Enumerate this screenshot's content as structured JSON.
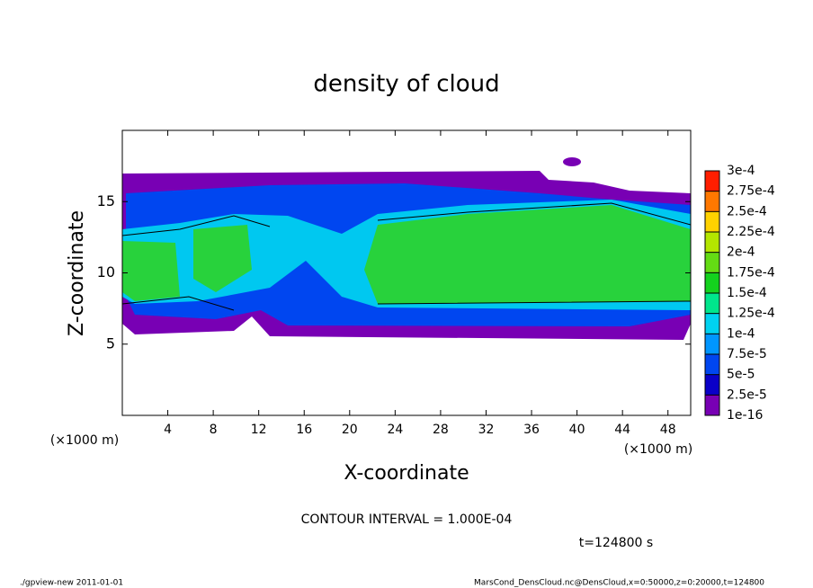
{
  "chart_data": {
    "type": "contour",
    "title": "density of cloud",
    "x_label": "X-coordinate",
    "y_label": "Z-coordinate",
    "axis_unit": "(×1000 m)",
    "xlim": [
      0,
      50
    ],
    "xticks": [
      4,
      8,
      12,
      16,
      20,
      24,
      28,
      32,
      36,
      40,
      44,
      48
    ],
    "ylim": [
      0,
      20
    ],
    "yticks": [
      5,
      10,
      15
    ],
    "colorbar_ticks": [
      1e-16,
      {
        "value": 2.5e-05,
        "label": "2.5e-5"
      },
      {
        "value": 5e-05,
        "label": "5e-5"
      },
      {
        "value": 7.5e-05,
        "label": "7.5e-5"
      },
      {
        "value": 0.0001,
        "label": "1e-4"
      },
      {
        "value": 0.000125,
        "label": "1.25e-4"
      },
      {
        "value": 0.00015,
        "label": "1.5e-4"
      },
      {
        "value": 0.000175,
        "label": "1.75e-4"
      },
      {
        "value": 0.0002,
        "label": "2e-4"
      },
      {
        "value": 0.000225,
        "label": "2.25e-4"
      },
      {
        "value": 0.00025,
        "label": "2.5e-4"
      },
      {
        "value": 0.000275,
        "label": "2.75e-4"
      },
      {
        "value": 0.0003,
        "label": "3e-4"
      }
    ],
    "colorbar_colors": [
      "#7800b4",
      "#0a00c8",
      "#0046f0",
      "#0096ff",
      "#00d2f0",
      "#00e68c",
      "#14d21e",
      "#64dc14",
      "#b4e600",
      "#ffd200",
      "#ff7800",
      "#ff1e00",
      "#ff8c8c"
    ],
    "contour_interval": "CONTOUR INTERVAL = 1.000E-04",
    "time_label": "t=124800 s",
    "footer_left": "./gpview-new  2011-01-01",
    "footer_right": "MarsCond_DensCloud.nc@DensCloud,x=0:50000,z=0:20000,t=124800"
  }
}
